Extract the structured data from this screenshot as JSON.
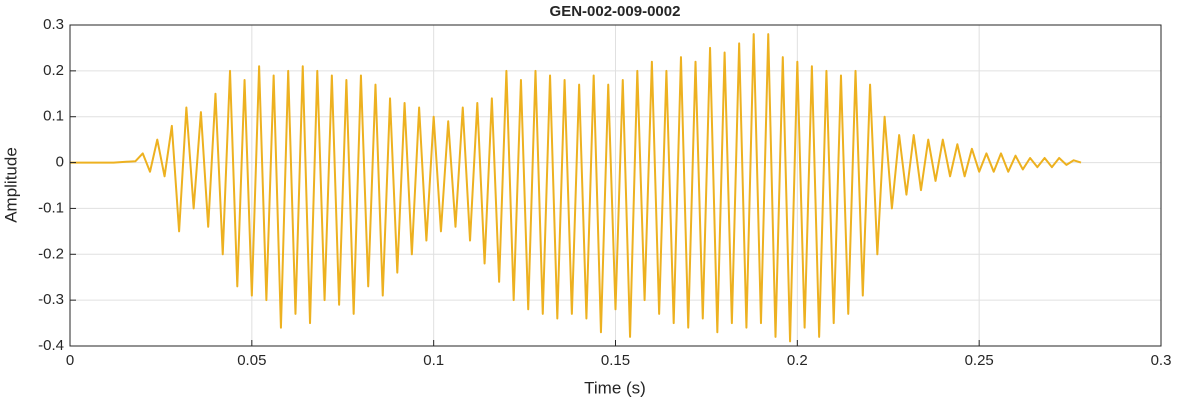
{
  "chart_data": {
    "type": "line",
    "title": "GEN-002-009-0002",
    "x_label": "Time (s)",
    "y_label": "Amplitude",
    "color": "#edb120",
    "grid": true,
    "xlim": [
      0,
      0.3
    ],
    "xticks": [
      0,
      0.05,
      0.1,
      0.15,
      0.2,
      0.25,
      0.3
    ],
    "ylim": [
      -0.4,
      0.3
    ],
    "yticks": [
      -0.4,
      -0.3,
      -0.2,
      -0.1,
      0,
      0.1,
      0.2,
      0.3
    ],
    "x": [
      0,
      0.006,
      0.012,
      0.018,
      0.02,
      0.022,
      0.024,
      0.026,
      0.028,
      0.03,
      0.032,
      0.034,
      0.036,
      0.038,
      0.04,
      0.042,
      0.044,
      0.046,
      0.048,
      0.05,
      0.052,
      0.054,
      0.056,
      0.058,
      0.06,
      0.062,
      0.064,
      0.066,
      0.068,
      0.07,
      0.072,
      0.074,
      0.076,
      0.078,
      0.08,
      0.082,
      0.084,
      0.086,
      0.088,
      0.09,
      0.092,
      0.094,
      0.096,
      0.098,
      0.1,
      0.102,
      0.104,
      0.106,
      0.108,
      0.11,
      0.112,
      0.114,
      0.116,
      0.118,
      0.12,
      0.122,
      0.124,
      0.126,
      0.128,
      0.13,
      0.132,
      0.134,
      0.136,
      0.138,
      0.14,
      0.142,
      0.144,
      0.146,
      0.148,
      0.15,
      0.152,
      0.154,
      0.156,
      0.158,
      0.16,
      0.162,
      0.164,
      0.166,
      0.168,
      0.17,
      0.172,
      0.174,
      0.176,
      0.178,
      0.18,
      0.182,
      0.184,
      0.186,
      0.188,
      0.19,
      0.192,
      0.194,
      0.196,
      0.198,
      0.2,
      0.202,
      0.204,
      0.206,
      0.208,
      0.21,
      0.212,
      0.214,
      0.216,
      0.218,
      0.22,
      0.222,
      0.224,
      0.226,
      0.228,
      0.23,
      0.232,
      0.234,
      0.236,
      0.238,
      0.24,
      0.242,
      0.244,
      0.246,
      0.248,
      0.25,
      0.252,
      0.254,
      0.256,
      0.258,
      0.26,
      0.262,
      0.264,
      0.266,
      0.268,
      0.27,
      0.272,
      0.274,
      0.276,
      0.278
    ],
    "values": [
      0,
      0,
      0,
      0.003,
      0.02,
      -0.02,
      0.05,
      -0.03,
      0.08,
      -0.15,
      0.12,
      -0.1,
      0.11,
      -0.14,
      0.15,
      -0.2,
      0.2,
      -0.27,
      0.18,
      -0.29,
      0.21,
      -0.3,
      0.19,
      -0.36,
      0.2,
      -0.33,
      0.21,
      -0.35,
      0.2,
      -0.3,
      0.19,
      -0.31,
      0.18,
      -0.33,
      0.19,
      -0.27,
      0.17,
      -0.29,
      0.14,
      -0.24,
      0.13,
      -0.2,
      0.12,
      -0.17,
      0.1,
      -0.15,
      0.09,
      -0.14,
      0.12,
      -0.17,
      0.13,
      -0.22,
      0.14,
      -0.26,
      0.2,
      -0.3,
      0.18,
      -0.32,
      0.2,
      -0.33,
      0.19,
      -0.34,
      0.18,
      -0.33,
      0.17,
      -0.34,
      0.19,
      -0.37,
      0.17,
      -0.32,
      0.18,
      -0.38,
      0.2,
      -0.3,
      0.22,
      -0.33,
      0.2,
      -0.35,
      0.23,
      -0.36,
      0.22,
      -0.34,
      0.25,
      -0.37,
      0.24,
      -0.35,
      0.26,
      -0.36,
      0.28,
      -0.35,
      0.28,
      -0.38,
      0.23,
      -0.39,
      0.22,
      -0.36,
      0.21,
      -0.38,
      0.2,
      -0.35,
      0.19,
      -0.33,
      0.2,
      -0.29,
      0.17,
      -0.2,
      0.1,
      -0.1,
      0.06,
      -0.07,
      0.06,
      -0.06,
      0.05,
      -0.04,
      0.05,
      -0.03,
      0.04,
      -0.03,
      0.03,
      -0.02,
      0.02,
      -0.02,
      0.02,
      -0.02,
      0.015,
      -0.015,
      0.01,
      -0.01,
      0.01,
      -0.01,
      0.01,
      -0.005,
      0.005,
      0
    ]
  }
}
